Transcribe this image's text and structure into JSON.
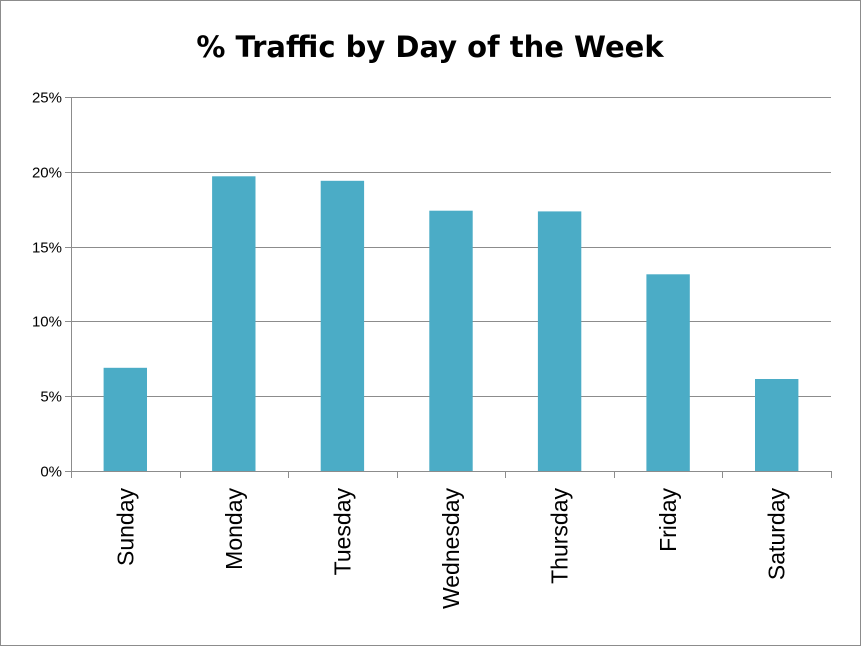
{
  "chart_data": {
    "type": "bar",
    "title": "% Traffic by Day of the Week",
    "xlabel": "",
    "ylabel": "",
    "categories": [
      "Sunday",
      "Monday",
      "Tuesday",
      "Wednesday",
      "Thursday",
      "Friday",
      "Saturday"
    ],
    "values": [
      6.9,
      19.7,
      19.4,
      17.4,
      17.35,
      13.15,
      6.15
    ],
    "ylim": [
      0,
      25
    ],
    "yticks": [
      0,
      5,
      10,
      15,
      20,
      25
    ],
    "ytick_labels": [
      "0%",
      "5%",
      "10%",
      "15%",
      "20%",
      "25%"
    ],
    "grid": true,
    "legend": "none",
    "colors": {
      "bar": "#4bacc6",
      "grid": "#8c8c8c",
      "axis": "#8c8c8c"
    }
  }
}
